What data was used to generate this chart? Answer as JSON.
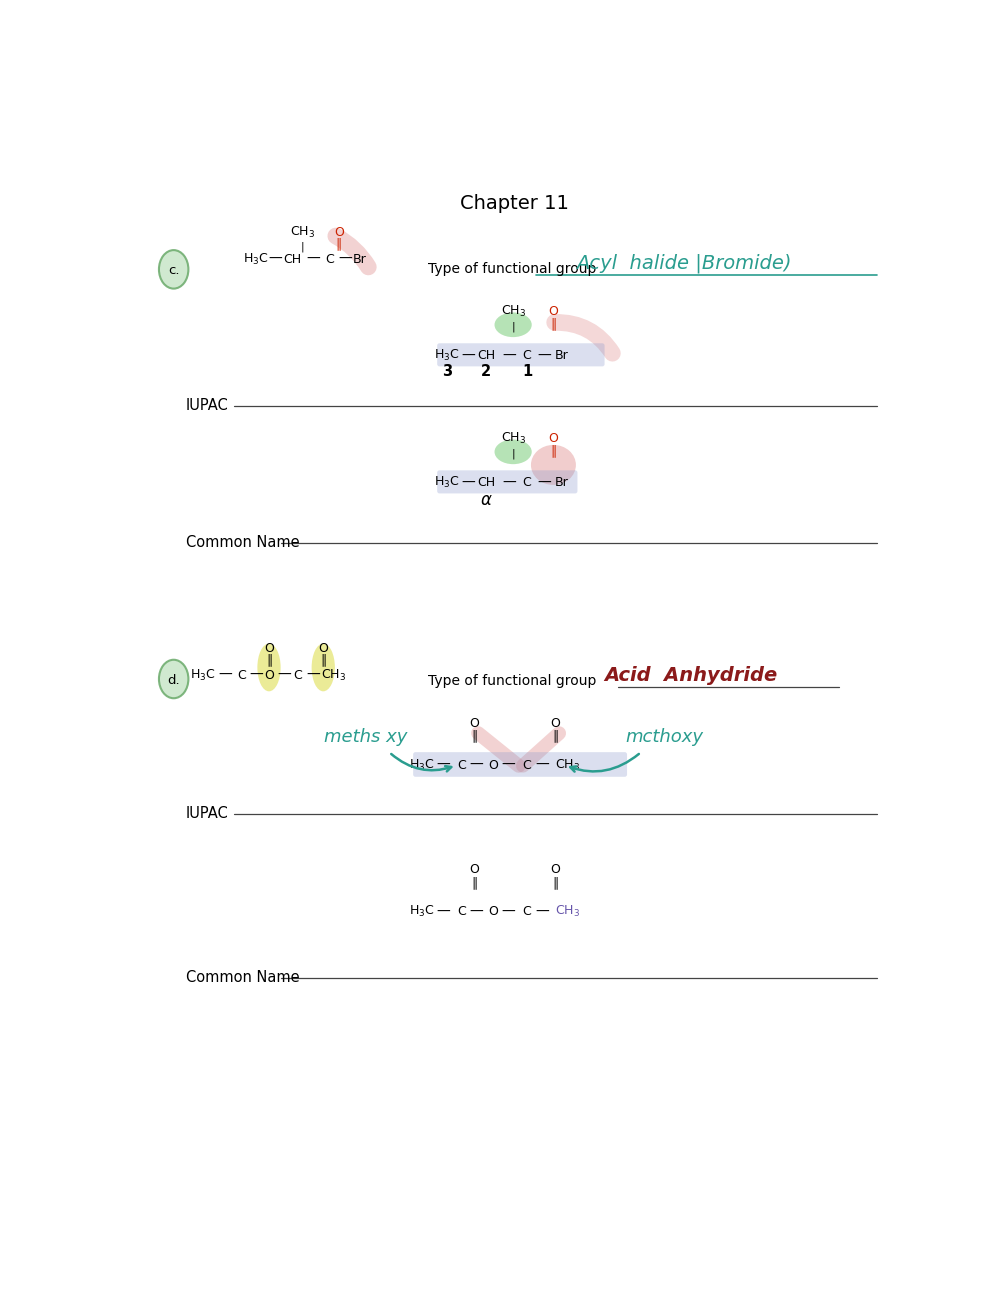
{
  "title": "Chapter 11",
  "teal_color": "#2a9d8f",
  "dark_red": "#8b1a1a",
  "green_circle_face": "#c8e6c8",
  "green_circle_edge": "#6aaa6a",
  "highlight_green": "#90c878",
  "highlight_pink": "#e8a090",
  "highlight_blue": "#9aaecc",
  "highlight_yellow": "#d8d840",
  "type_fg_label": "Type of functional group",
  "answer_c": "Acyl halide (Bromide)",
  "answer_d": "Acid Anhydride",
  "iupac_label": "IUPAC",
  "common_label": "Common Name",
  "methoxy1": "meths xy",
  "methoxy2": "mcthoxy"
}
